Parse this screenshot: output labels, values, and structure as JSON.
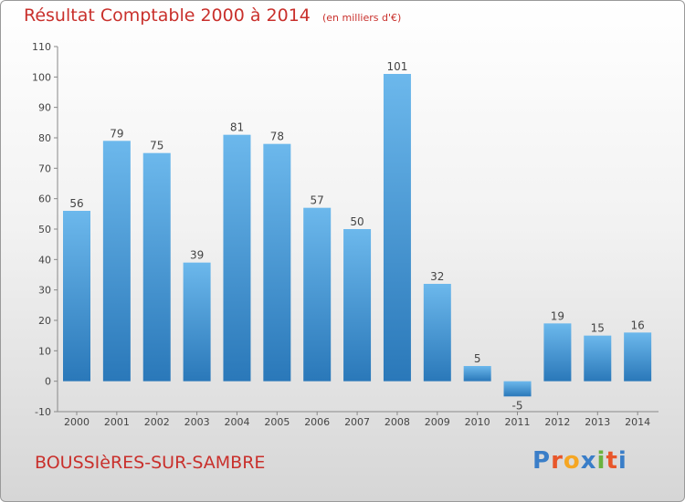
{
  "title": "Résultat Comptable 2000 à 2014",
  "unit": "(en milliers d'€)",
  "commune": "BOUSSIèRES-SUR-SAMBRE",
  "logo": {
    "letters": [
      "P",
      "r",
      "o",
      "x",
      "i",
      "t",
      "i"
    ],
    "colors": [
      "#3a7ec8",
      "#e8562a",
      "#f5a623",
      "#3a7ec8",
      "#6ab23e",
      "#e8562a",
      "#3a7ec8"
    ]
  },
  "colors": {
    "bar_top": "#6cb8ec",
    "bar_bottom": "#2a78b9",
    "title": "#c9302c",
    "axis": "#888888"
  },
  "chart_data": {
    "type": "bar",
    "title": "Résultat Comptable 2000 à 2014",
    "ylabel": "en milliers d'€",
    "categories": [
      "2000",
      "2001",
      "2002",
      "2003",
      "2004",
      "2005",
      "2006",
      "2007",
      "2008",
      "2009",
      "2010",
      "2011",
      "2012",
      "2013",
      "2014"
    ],
    "values": [
      56,
      79,
      75,
      39,
      81,
      78,
      57,
      50,
      101,
      32,
      5,
      -5,
      19,
      15,
      16
    ],
    "ylim": [
      -10,
      110
    ],
    "yticks": [
      -10,
      0,
      10,
      20,
      30,
      40,
      50,
      60,
      70,
      80,
      90,
      100,
      110
    ],
    "grid": false
  }
}
